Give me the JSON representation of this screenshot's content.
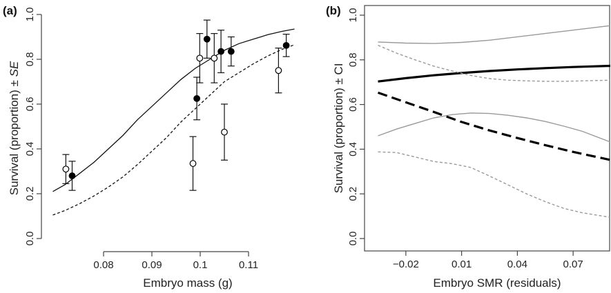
{
  "chart_data": [
    {
      "type": "scatter",
      "panel_label": "(a)",
      "xlabel": "Embryo mass (g)",
      "ylabel_main": "Survival (proportion) ± ",
      "ylabel_italic": "SE",
      "xlim": [
        0.068,
        0.12
      ],
      "ylim": [
        0.0,
        1.0
      ],
      "x_ticks": [
        0.08,
        0.09,
        0.1,
        0.11
      ],
      "x_tick_labels": [
        "0.08",
        "0.09",
        "0.1",
        "0.11"
      ],
      "y_ticks": [
        0.0,
        0.2,
        0.4,
        0.6,
        0.8,
        1.0
      ],
      "y_tick_labels": [
        "0.0",
        "0.2",
        "0.4",
        "0.6",
        "0.8",
        "1.0"
      ],
      "grid": false,
      "curves": [
        {
          "style": "solid",
          "x": [
            0.0695,
            0.072,
            0.075,
            0.078,
            0.081,
            0.084,
            0.087,
            0.09,
            0.093,
            0.096,
            0.099,
            0.102,
            0.105,
            0.108,
            0.111,
            0.114,
            0.117,
            0.1195
          ],
          "y": [
            0.21,
            0.24,
            0.29,
            0.34,
            0.4,
            0.46,
            0.53,
            0.59,
            0.65,
            0.71,
            0.76,
            0.8,
            0.84,
            0.87,
            0.89,
            0.91,
            0.925,
            0.935
          ]
        },
        {
          "style": "dashed",
          "x": [
            0.0695,
            0.072,
            0.075,
            0.078,
            0.081,
            0.084,
            0.087,
            0.09,
            0.093,
            0.096,
            0.099,
            0.102,
            0.105,
            0.108,
            0.111,
            0.114,
            0.117,
            0.1195
          ],
          "y": [
            0.105,
            0.125,
            0.155,
            0.19,
            0.23,
            0.275,
            0.33,
            0.39,
            0.45,
            0.52,
            0.58,
            0.64,
            0.7,
            0.74,
            0.78,
            0.815,
            0.845,
            0.865
          ]
        }
      ],
      "points": [
        {
          "x": 0.0722,
          "y": 0.31,
          "se": 0.065,
          "fill": "open"
        },
        {
          "x": 0.0735,
          "y": 0.28,
          "se": 0.065,
          "fill": "filled"
        },
        {
          "x": 0.0985,
          "y": 0.335,
          "se": 0.12,
          "fill": "open"
        },
        {
          "x": 0.0993,
          "y": 0.625,
          "se": 0.095,
          "fill": "filled"
        },
        {
          "x": 0.0999,
          "y": 0.805,
          "se": 0.11,
          "fill": "open"
        },
        {
          "x": 0.1014,
          "y": 0.89,
          "se": 0.085,
          "fill": "filled"
        },
        {
          "x": 0.1029,
          "y": 0.805,
          "se": 0.11,
          "fill": "open"
        },
        {
          "x": 0.1043,
          "y": 0.835,
          "se": 0.095,
          "fill": "filled"
        },
        {
          "x": 0.105,
          "y": 0.475,
          "se": 0.125,
          "fill": "open"
        },
        {
          "x": 0.1064,
          "y": 0.835,
          "se": 0.065,
          "fill": "filled"
        },
        {
          "x": 0.1162,
          "y": 0.75,
          "se": 0.1,
          "fill": "open"
        },
        {
          "x": 0.1178,
          "y": 0.862,
          "se": 0.05,
          "fill": "filled"
        }
      ]
    },
    {
      "type": "line",
      "panel_label": "(b)",
      "xlabel": "Embryo SMR (residuals)",
      "ylabel": "Survival (proportion) ± CI",
      "xlim": [
        -0.04,
        0.09
      ],
      "ylim": [
        0.0,
        1.0
      ],
      "x_ticks": [
        -0.02,
        0.01,
        0.04,
        0.07
      ],
      "x_tick_labels": [
        "−0.02",
        "0.01",
        "0.04",
        "0.07"
      ],
      "y_ticks": [
        0.0,
        0.2,
        0.4,
        0.6,
        0.8,
        1.0
      ],
      "y_tick_labels": [
        "0.0",
        "0.2",
        "0.4",
        "0.6",
        "0.8",
        "1.0"
      ],
      "grid": false,
      "series": [
        {
          "role": "fit",
          "style": "solid-thick",
          "color": "#000000",
          "x": [
            -0.035,
            -0.02,
            -0.005,
            0.01,
            0.025,
            0.04,
            0.055,
            0.07,
            0.09
          ],
          "y": [
            0.703,
            0.718,
            0.731,
            0.741,
            0.75,
            0.757,
            0.763,
            0.768,
            0.773
          ]
        },
        {
          "role": "upper-ci",
          "style": "solid-thin",
          "color": "#999999",
          "x": [
            -0.035,
            -0.02,
            -0.005,
            0.01,
            0.025,
            0.04,
            0.055,
            0.07,
            0.09
          ],
          "y": [
            0.88,
            0.875,
            0.873,
            0.878,
            0.888,
            0.903,
            0.918,
            0.933,
            0.953
          ]
        },
        {
          "role": "lower-ci",
          "style": "solid-thin",
          "color": "#999999",
          "x": [
            -0.035,
            -0.025,
            -0.015,
            -0.005,
            0.005,
            0.015,
            0.025,
            0.035,
            0.045,
            0.055,
            0.065,
            0.075,
            0.09
          ],
          "y": [
            0.46,
            0.49,
            0.515,
            0.54,
            0.555,
            0.562,
            0.56,
            0.552,
            0.54,
            0.524,
            0.503,
            0.48,
            0.432
          ]
        },
        {
          "role": "fit",
          "style": "dashed-thick",
          "color": "#000000",
          "x": [
            -0.035,
            -0.02,
            -0.005,
            0.01,
            0.025,
            0.04,
            0.055,
            0.07,
            0.09
          ],
          "y": [
            0.653,
            0.61,
            0.567,
            0.522,
            0.484,
            0.45,
            0.418,
            0.388,
            0.352
          ]
        },
        {
          "role": "upper-ci",
          "style": "dashed-thin",
          "color": "#999999",
          "x": [
            -0.035,
            -0.025,
            -0.015,
            -0.005,
            0.005,
            0.015,
            0.025,
            0.035,
            0.045,
            0.055,
            0.065,
            0.075,
            0.09
          ],
          "y": [
            0.865,
            0.83,
            0.8,
            0.772,
            0.75,
            0.73,
            0.716,
            0.709,
            0.706,
            0.704,
            0.704,
            0.706,
            0.709
          ]
        },
        {
          "role": "lower-ci",
          "style": "dashed-thin",
          "color": "#999999",
          "x": [
            -0.035,
            -0.025,
            -0.015,
            -0.005,
            0.005,
            0.015,
            0.025,
            0.035,
            0.045,
            0.055,
            0.065,
            0.075,
            0.09
          ],
          "y": [
            0.388,
            0.385,
            0.365,
            0.345,
            0.335,
            0.318,
            0.28,
            0.24,
            0.2,
            0.165,
            0.135,
            0.115,
            0.095
          ]
        }
      ]
    }
  ]
}
